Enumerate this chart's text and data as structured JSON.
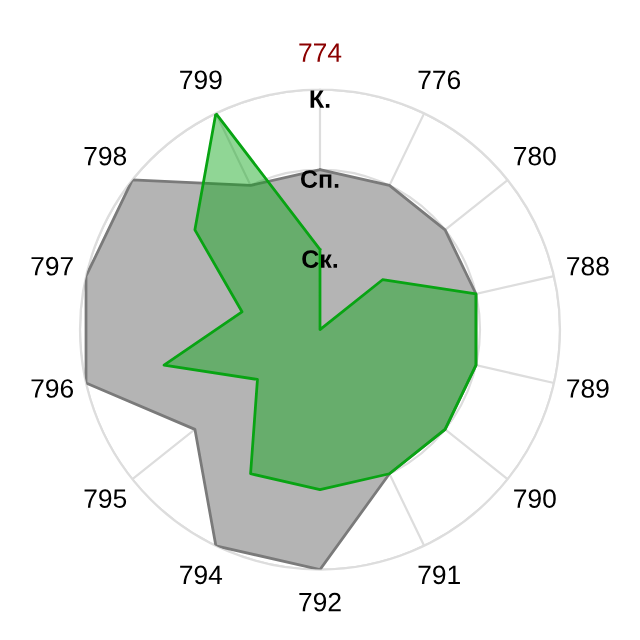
{
  "chart_data": {
    "type": "radar",
    "categories": [
      "774",
      "776",
      "780",
      "788",
      "789",
      "790",
      "791",
      "792",
      "794",
      "795",
      "796",
      "797",
      "798",
      "799"
    ],
    "series": [
      {
        "color": "#b4b4b4",
        "values": [
          2,
          2,
          2,
          2,
          2,
          2,
          2,
          3,
          3,
          2,
          3,
          3,
          3,
          2
        ]
      },
      {
        "color": "#08a413",
        "values": [
          1,
          0,
          1,
          2,
          2,
          2,
          2,
          2,
          2,
          1,
          2,
          1,
          2,
          3
        ]
      }
    ],
    "ylim": [
      0,
      3
    ],
    "yticks": [
      {
        "value": 1,
        "label": "Ск."
      },
      {
        "value": 2,
        "label": "Сп."
      },
      {
        "value": 3,
        "label": "К."
      }
    ],
    "grid": true,
    "legend": false
  }
}
